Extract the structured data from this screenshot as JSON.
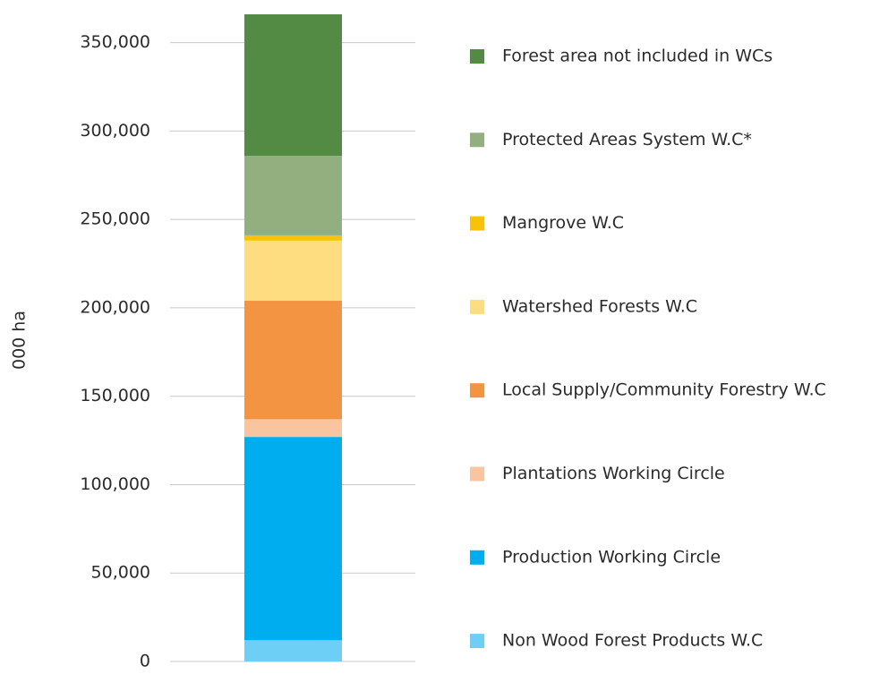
{
  "chart_data": {
    "type": "stacked_bar",
    "ylabel": "000 ha",
    "ylim": [
      0,
      366000
    ],
    "yticks": [
      0,
      {
        "value": 50000,
        "label": "50,000"
      },
      {
        "value": 100000,
        "label": "100,000"
      },
      {
        "value": 150000,
        "label": "150,000"
      },
      {
        "value": 200000,
        "label": "200,000"
      },
      {
        "value": 250000,
        "label": "250,000"
      },
      {
        "value": 300000,
        "label": "300,000"
      },
      {
        "value": 350000,
        "label": "350,000"
      }
    ],
    "grid": true,
    "series": [
      {
        "name": "Non Wood Forest Products W.C",
        "color": "#6dcff6",
        "values": [
          12000
        ]
      },
      {
        "name": "Production Working Circle",
        "color": "#00aeef",
        "values": [
          115000
        ]
      },
      {
        "name": "Plantations Working Circle",
        "color": "#f9c4a0",
        "values": [
          10000
        ]
      },
      {
        "name": "Local Supply/Community Forestry W.C",
        "color": "#f39442",
        "values": [
          67000
        ]
      },
      {
        "name": "Watershed Forests W.C",
        "color": "#fedd80",
        "values": [
          34000
        ]
      },
      {
        "name": "Mangrove W.C",
        "color": "#f9c20a",
        "values": [
          3000
        ]
      },
      {
        "name": "Protected Areas System W.C*",
        "color": "#93af7f",
        "values": [
          45000
        ]
      },
      {
        "name": "Forest area not included in WCs",
        "color": "#548b44",
        "values": [
          80000
        ]
      }
    ]
  }
}
